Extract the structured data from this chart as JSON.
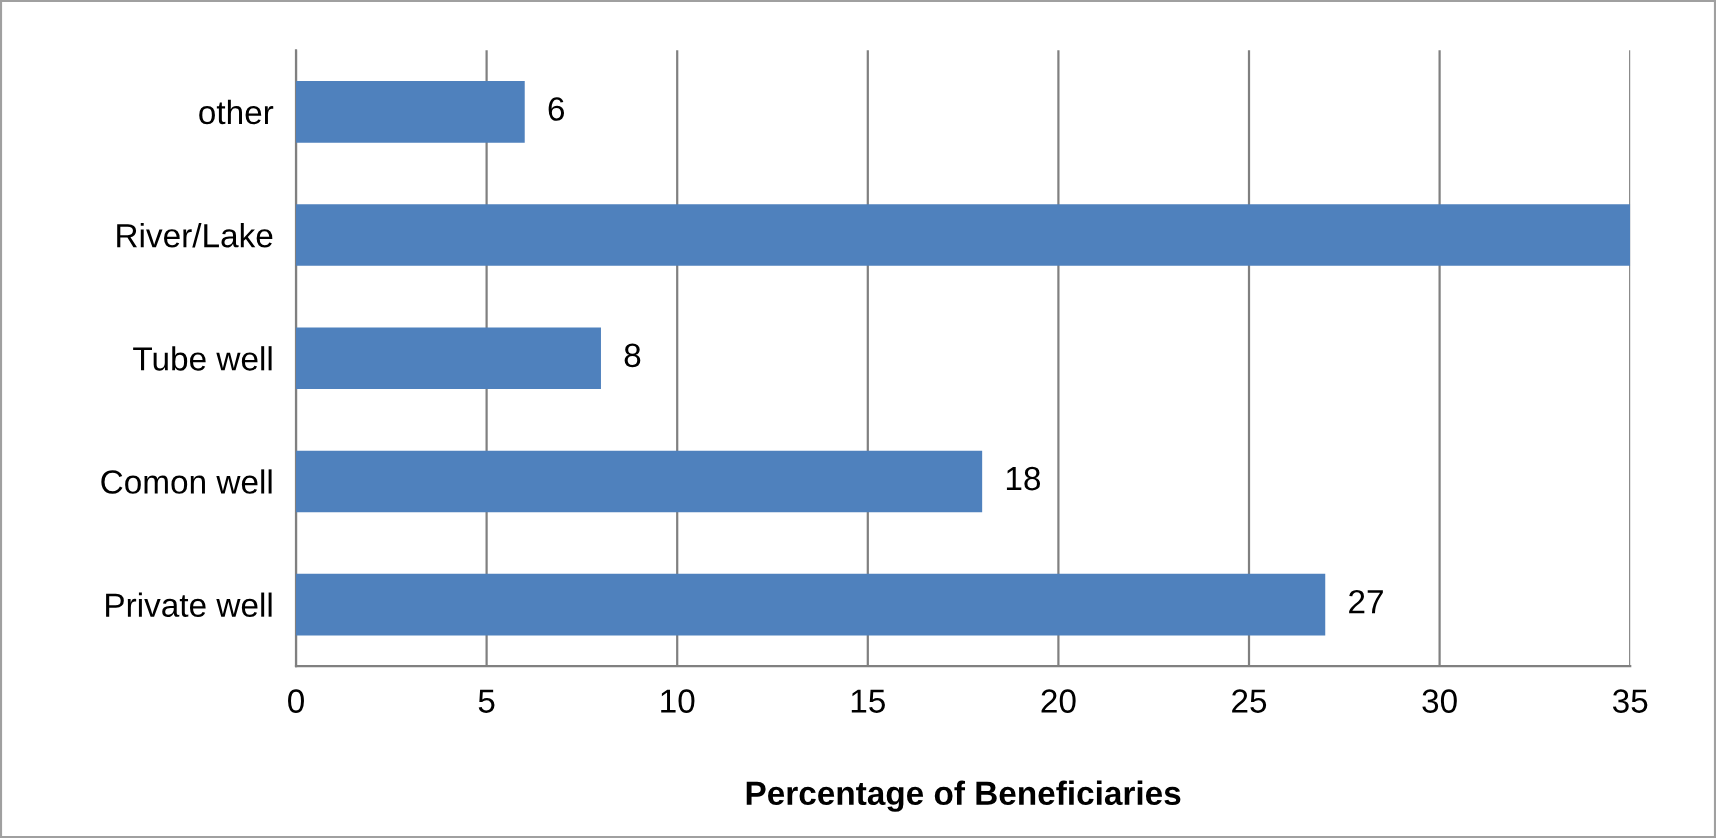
{
  "chart_data": {
    "type": "bar",
    "orientation": "horizontal",
    "xlabel": "Percentage of Beneficiaries",
    "categories": [
      "other",
      "River/Lake",
      "Tube well",
      "Comon well",
      "Private well"
    ],
    "values": [
      6,
      35,
      8,
      18,
      27
    ],
    "value_labels": [
      "6",
      null,
      "8",
      "18",
      "27"
    ],
    "color": "#4f81bd",
    "xlim": [
      0,
      35
    ],
    "xticks": [
      0,
      5,
      10,
      15,
      20,
      25,
      30,
      35
    ],
    "grid": "x",
    "legend": false
  }
}
